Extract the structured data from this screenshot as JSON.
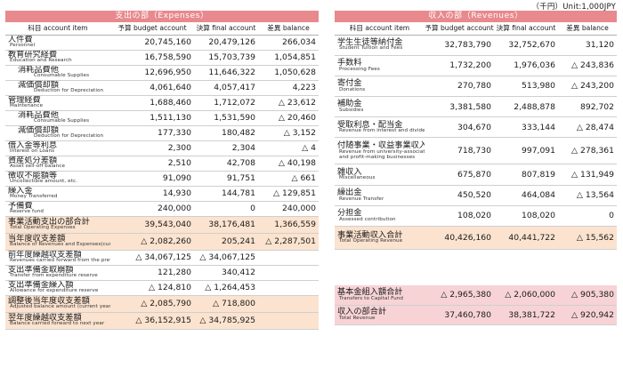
{
  "unit": "（千円）Unit:1,000JPY",
  "expenses": {
    "title": "支出の部（Expenses）",
    "headers": {
      "item": "科目 account item",
      "budget": "予算 budget account",
      "final": "決算 final account",
      "balance": "差異 balance"
    },
    "rows": [
      {
        "ja": "人件費",
        "en": "Personnel",
        "budget": "20,745,160",
        "final": "20,479,126",
        "balance": "266,034"
      },
      {
        "ja": "教育研究経費",
        "en": "Education and Research",
        "budget": "16,758,590",
        "final": "15,703,739",
        "balance": "1,054,851"
      },
      {
        "ja": "消耗品費他",
        "en": "Consumable Supplies",
        "budget": "12,696,950",
        "final": "11,646,322",
        "balance": "1,050,628",
        "sub": true
      },
      {
        "ja": "減価償却額",
        "en": "Deduction for Depreciation",
        "budget": "4,061,640",
        "final": "4,057,417",
        "balance": "4,223",
        "sub": true
      },
      {
        "ja": "管理経費",
        "en": "Maintenance",
        "budget": "1,688,460",
        "final": "1,712,072",
        "balance": "△ 23,612"
      },
      {
        "ja": "消耗品費他",
        "en": "Consumable Supplies",
        "budget": "1,511,130",
        "final": "1,531,590",
        "balance": "△ 20,460",
        "sub": true
      },
      {
        "ja": "減価償却額",
        "en": "Deduction for Depreciation",
        "budget": "177,330",
        "final": "180,482",
        "balance": "△ 3,152",
        "sub": true
      },
      {
        "ja": "借入金等利息",
        "en": "Interest on Loans",
        "budget": "2,300",
        "final": "2,304",
        "balance": "△ 4"
      },
      {
        "ja": "資産処分差額",
        "en": "Asset sell-off balance",
        "budget": "2,510",
        "final": "42,708",
        "balance": "△ 40,198"
      },
      {
        "ja": "徴収不能額等",
        "en": "Uncollectible amount, etc.",
        "budget": "91,090",
        "final": "91,751",
        "balance": "△ 661"
      },
      {
        "ja": "繰入金",
        "en": "Money Transferred",
        "budget": "14,930",
        "final": "144,781",
        "balance": "△ 129,851"
      },
      {
        "ja": "予備費",
        "en": "Reserve fund",
        "budget": "240,000",
        "final": "0",
        "balance": "240,000"
      },
      {
        "ja": "事業活動支出の部合計",
        "en": "Total Operating Expenses",
        "budget": "39,543,040",
        "final": "38,176,481",
        "balance": "1,366,559",
        "hl": true
      },
      {
        "ja": "当年度収支差額",
        "en": "Balance of Revenues and Expenses(current year)",
        "budget": "△ 2,082,260",
        "final": "205,241",
        "balance": "△ 2,287,501",
        "hl": true
      },
      {
        "ja": "前年度繰越収支差額",
        "en": "Revenues carried forward from the previous year",
        "budget": "△ 34,067,125",
        "final": "△ 34,067,125",
        "balance": ""
      },
      {
        "ja": "支出準備金取崩額",
        "en": "Transfer from expenditure reserve",
        "budget": "121,280",
        "final": "340,412",
        "balance": ""
      },
      {
        "ja": "支出準備金繰入額",
        "en": "Allowance for expenditure reserve",
        "budget": "△ 124,810",
        "final": "△ 1,264,453",
        "balance": ""
      },
      {
        "ja": "調整後当年度収支差額",
        "en": "Adjusted balance amount (current year)",
        "budget": "△ 2,085,790",
        "final": "△ 718,800",
        "balance": "",
        "hl": true
      },
      {
        "ja": "翌年度繰越収支差額",
        "en": "Balance carried forward to next year",
        "budget": "△ 36,152,915",
        "final": "△ 34,785,925",
        "balance": "",
        "hl": true
      }
    ]
  },
  "revenues": {
    "title": "収入の部（Revenues）",
    "headers": {
      "item": "科目 account item",
      "budget": "予算 budget account",
      "final": "決算 final account",
      "balance": "差異 balance"
    },
    "rows": [
      {
        "ja": "学生生徒等納付金",
        "en": "Student Tuition and Fees",
        "budget": "32,783,790",
        "final": "32,752,670",
        "balance": "31,120"
      },
      {
        "ja": "手数料",
        "en": "Processing Fees",
        "budget": "1,732,200",
        "final": "1,976,036",
        "balance": "△ 243,836"
      },
      {
        "ja": "寄付金",
        "en": "Donations",
        "budget": "270,780",
        "final": "513,980",
        "balance": "△ 243,200"
      },
      {
        "ja": "補助金",
        "en": "Subsidies",
        "budget": "3,381,580",
        "final": "2,488,878",
        "balance": "892,702"
      },
      {
        "ja": "受取利息・配当金",
        "en": "Revenue from interest and dividends",
        "budget": "304,670",
        "final": "333,144",
        "balance": "△ 28,474"
      },
      {
        "ja": "付随事業・収益事業収入",
        "en": "Revenue from university-associated and profit-making businesses",
        "en2": "and profit-making businesses",
        "en1": "Revenue from university-associated",
        "budget": "718,730",
        "final": "997,091",
        "balance": "△ 278,361"
      },
      {
        "ja": "雑収入",
        "en": "Miscellaneous",
        "budget": "675,870",
        "final": "807,819",
        "balance": "△ 131,949"
      },
      {
        "ja": "繰出金",
        "en": "Revenue Transfer",
        "budget": "450,520",
        "final": "464,084",
        "balance": "△ 13,564"
      },
      {
        "ja": "分担金",
        "en": "Assessed contribution",
        "budget": "108,020",
        "final": "108,020",
        "balance": "0"
      },
      {
        "ja": "事業活動収入合計",
        "en": "Total Operating Revenue",
        "budget": "40,426,160",
        "final": "40,441,722",
        "balance": "△ 15,562",
        "hl": true
      }
    ]
  },
  "totals": {
    "rows": [
      {
        "ja": "基本金組入額合計",
        "en": "Transfers to Capital Fund",
        "budget": "△ 2,965,380",
        "final": "△ 2,060,000",
        "balance": "△ 905,380"
      },
      {
        "ja": "収入の部合計",
        "en": "Total Revenue",
        "budget": "37,460,780",
        "final": "38,381,722",
        "balance": "△ 920,942"
      }
    ]
  }
}
